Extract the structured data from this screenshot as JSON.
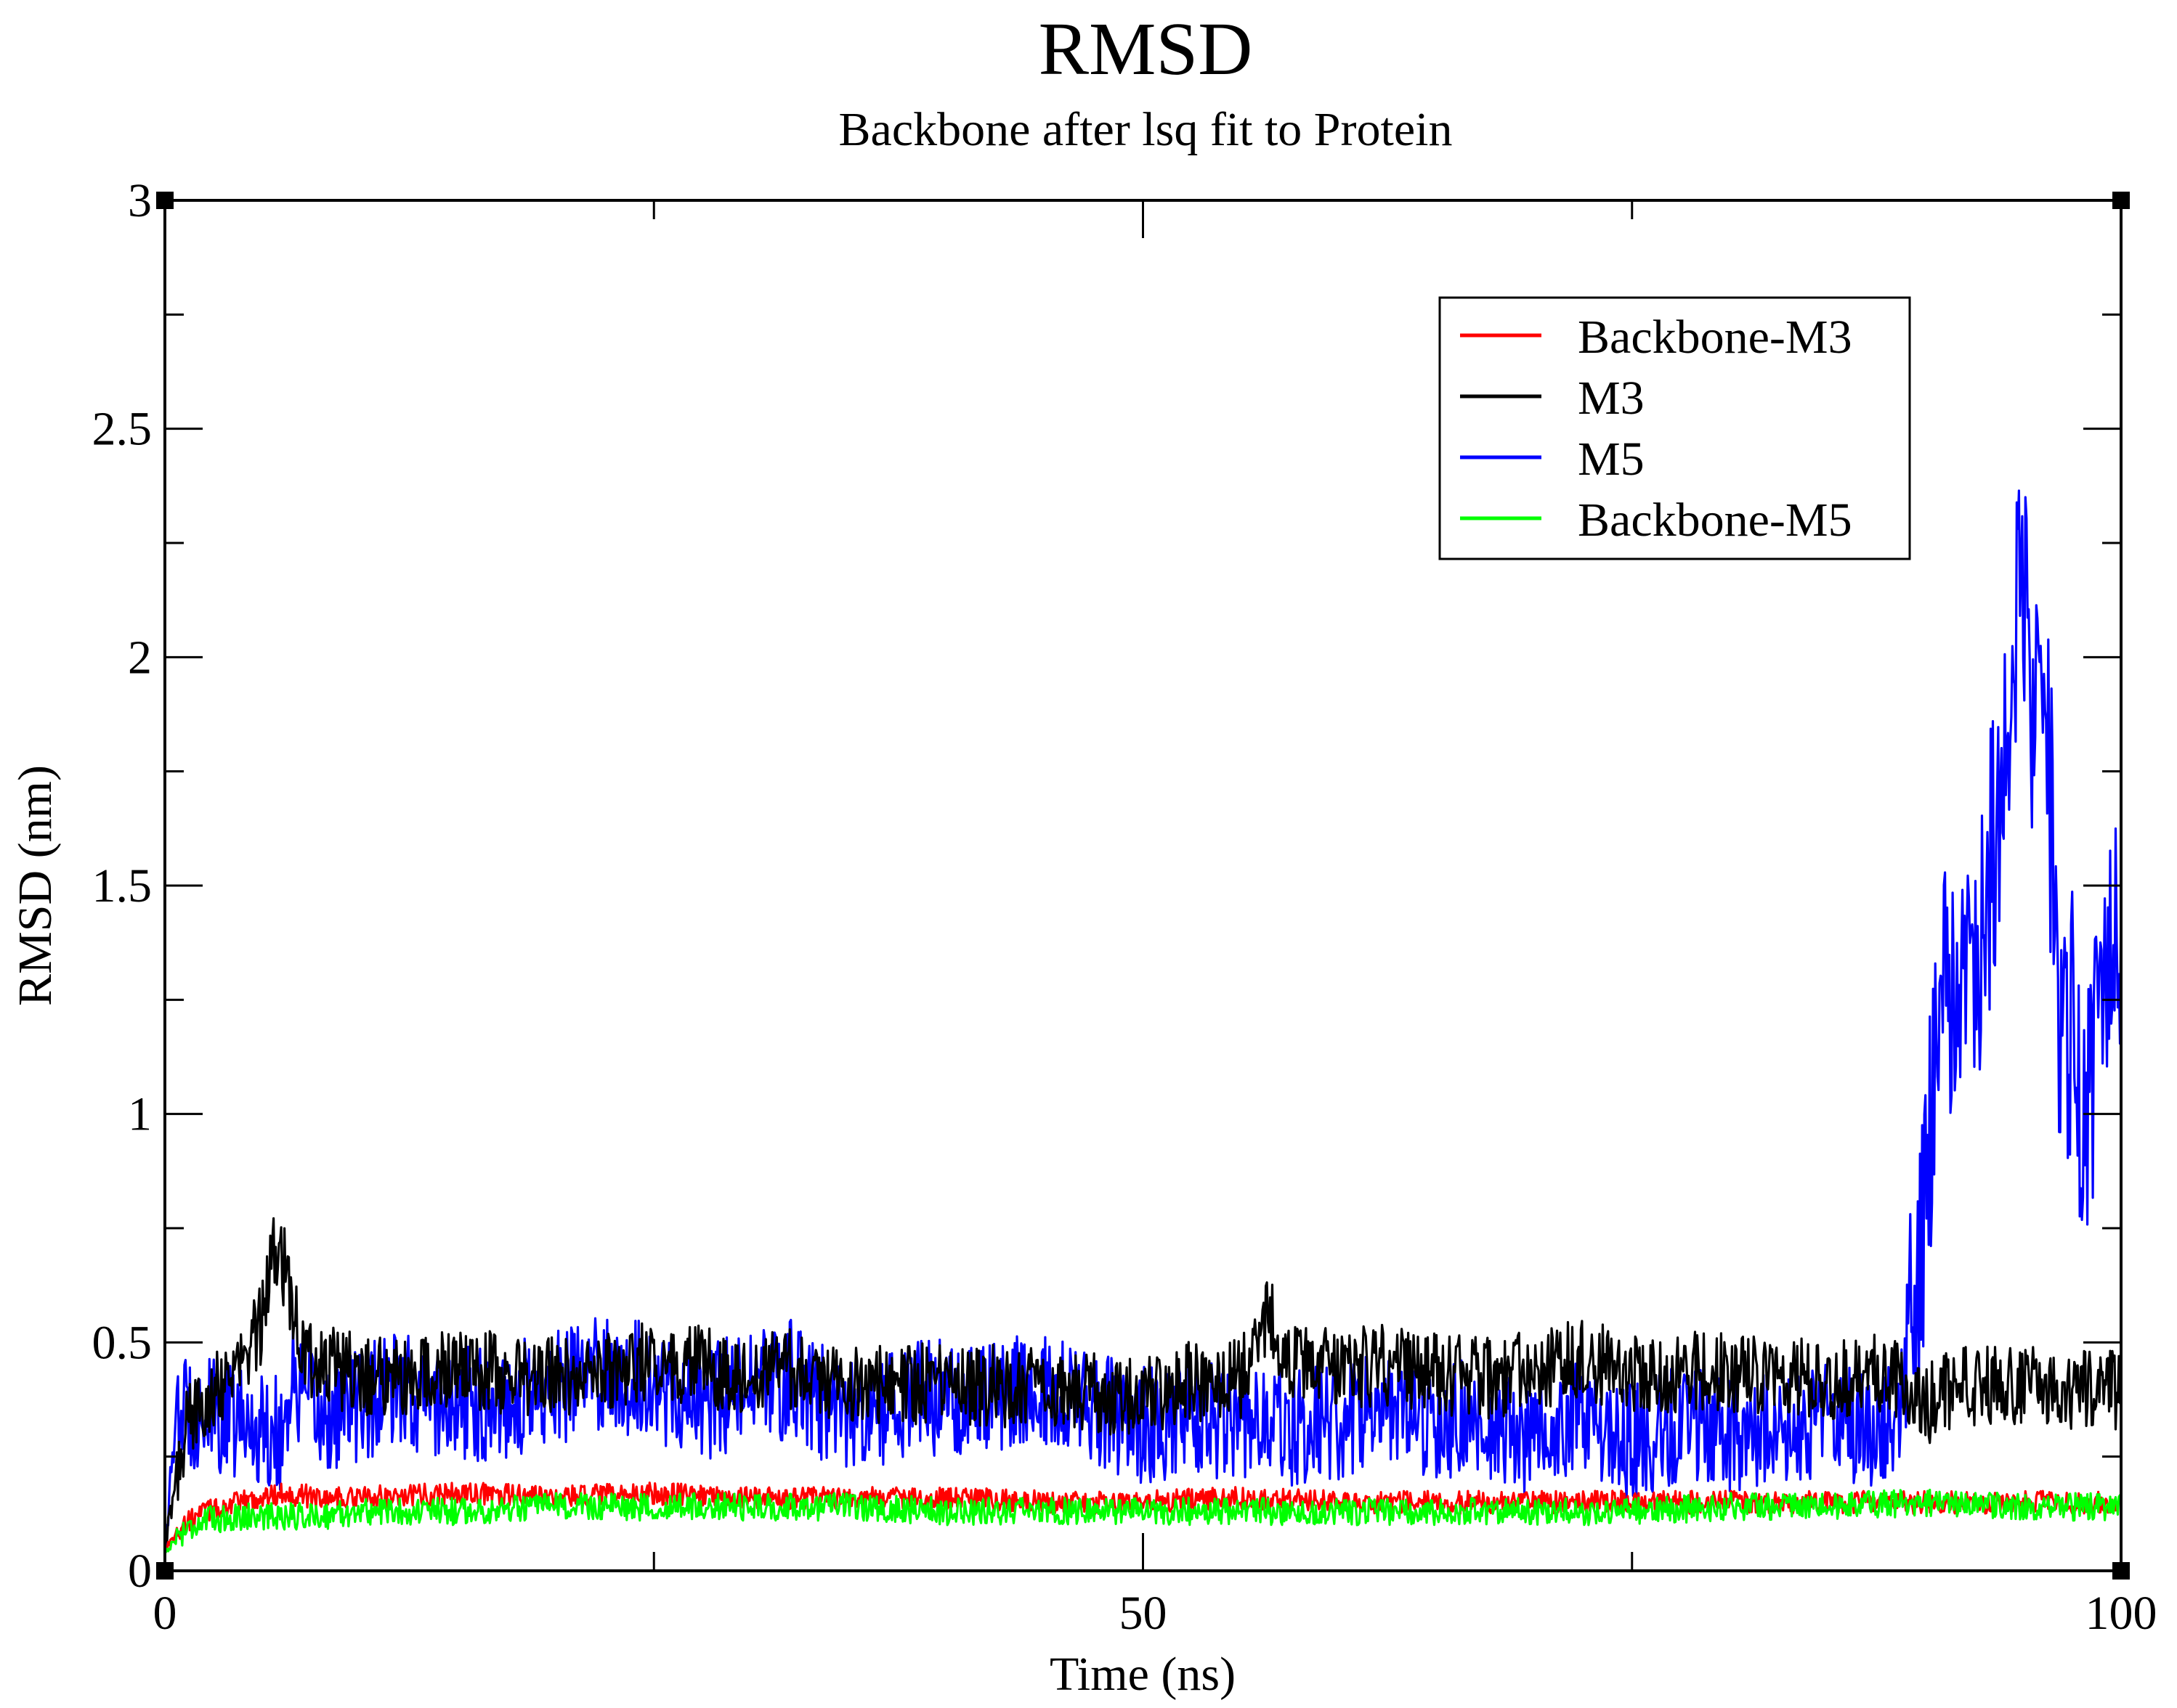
{
  "chart_data": {
    "type": "line",
    "title": "RMSD",
    "subtitle": "Backbone after lsq fit to Protein",
    "xlabel": "Time (ns)",
    "ylabel": "RMSD (nm)",
    "xlim": [
      0,
      100
    ],
    "ylim": [
      0,
      3
    ],
    "xticks": [
      0,
      50,
      100
    ],
    "xtick_labels": [
      "0",
      "50",
      "100"
    ],
    "xminor_ticks": [
      25,
      75
    ],
    "yticks": [
      0,
      0.5,
      1,
      1.5,
      2,
      2.5,
      3
    ],
    "ytick_labels": [
      "0",
      "0.5",
      "1",
      "1.5",
      "2",
      "2.5",
      "3"
    ],
    "yminor_ticks": [
      0.25,
      0.75,
      1.25,
      1.75,
      2.25,
      2.75
    ],
    "grid": false,
    "legend_position": "top-right",
    "series": [
      {
        "name": "Backbone-M3",
        "color": "#ff0000",
        "x": [
          0,
          1,
          2,
          4,
          6,
          8,
          10,
          15,
          20,
          25,
          30,
          35,
          40,
          45,
          50,
          55,
          60,
          65,
          70,
          75,
          80,
          85,
          90,
          95,
          100
        ],
        "y": [
          0.05,
          0.1,
          0.13,
          0.15,
          0.17,
          0.16,
          0.16,
          0.17,
          0.16,
          0.17,
          0.16,
          0.16,
          0.16,
          0.15,
          0.15,
          0.16,
          0.15,
          0.15,
          0.15,
          0.15,
          0.15,
          0.15,
          0.15,
          0.15,
          0.15
        ],
        "amp": 0.025
      },
      {
        "name": "M3",
        "color": "#000000",
        "x": [
          0,
          0.5,
          1,
          2,
          3,
          4,
          5,
          5.5,
          6,
          6.5,
          7,
          8,
          10,
          12,
          15,
          18,
          20,
          22,
          25,
          27,
          30,
          32,
          35,
          40,
          45,
          48,
          50,
          52,
          55,
          56.5,
          57,
          58,
          60,
          62,
          65,
          68,
          70,
          72,
          75,
          80,
          85,
          88,
          89,
          90,
          92,
          95,
          98,
          100
        ],
        "y": [
          0.05,
          0.18,
          0.3,
          0.38,
          0.42,
          0.45,
          0.55,
          0.72,
          0.68,
          0.6,
          0.48,
          0.45,
          0.43,
          0.42,
          0.44,
          0.43,
          0.42,
          0.44,
          0.46,
          0.45,
          0.43,
          0.44,
          0.41,
          0.41,
          0.4,
          0.39,
          0.38,
          0.41,
          0.42,
          0.58,
          0.5,
          0.45,
          0.44,
          0.45,
          0.43,
          0.42,
          0.44,
          0.46,
          0.44,
          0.43,
          0.42,
          0.43,
          0.4,
          0.36,
          0.41,
          0.4,
          0.4,
          0.39
        ],
        "amp": 0.09
      },
      {
        "name": "M5",
        "color": "#0000ff",
        "x": [
          0,
          0.5,
          1,
          2,
          4,
          6,
          6.5,
          7,
          8,
          10,
          12,
          15,
          18,
          20,
          22,
          25,
          27,
          30,
          32,
          35,
          38,
          40,
          45,
          50,
          55,
          56,
          58,
          60,
          62,
          65,
          66,
          68,
          70,
          72,
          75,
          78,
          80,
          84,
          88,
          89,
          90,
          90.5,
          91,
          92,
          93,
          94,
          94.5,
          95,
          95.5,
          96,
          96.5,
          97,
          97.5,
          98,
          99,
          100
        ],
        "y": [
          0.05,
          0.3,
          0.36,
          0.34,
          0.32,
          0.3,
          0.42,
          0.38,
          0.33,
          0.37,
          0.39,
          0.36,
          0.38,
          0.4,
          0.43,
          0.42,
          0.36,
          0.4,
          0.42,
          0.33,
          0.37,
          0.38,
          0.4,
          0.32,
          0.33,
          0.34,
          0.31,
          0.33,
          0.35,
          0.29,
          0.35,
          0.29,
          0.3,
          0.33,
          0.28,
          0.33,
          0.3,
          0.33,
          0.31,
          0.4,
          0.75,
          1.1,
          1.3,
          1.2,
          1.45,
          1.75,
          2.0,
          2.15,
          1.8,
          1.9,
          1.6,
          1.05,
          1.2,
          0.9,
          1.25,
          1.38
        ],
        "amp": 0.13
      },
      {
        "name": "Backbone-M5",
        "color": "#00ff00",
        "x": [
          0,
          1,
          2,
          4,
          6,
          8,
          10,
          15,
          20,
          25,
          30,
          35,
          40,
          45,
          50,
          55,
          60,
          65,
          70,
          75,
          80,
          85,
          90,
          95,
          100
        ],
        "y": [
          0.04,
          0.09,
          0.11,
          0.12,
          0.12,
          0.12,
          0.13,
          0.13,
          0.14,
          0.14,
          0.14,
          0.14,
          0.13,
          0.13,
          0.13,
          0.13,
          0.13,
          0.13,
          0.13,
          0.13,
          0.14,
          0.14,
          0.15,
          0.14,
          0.14
        ],
        "amp": 0.03
      }
    ]
  }
}
